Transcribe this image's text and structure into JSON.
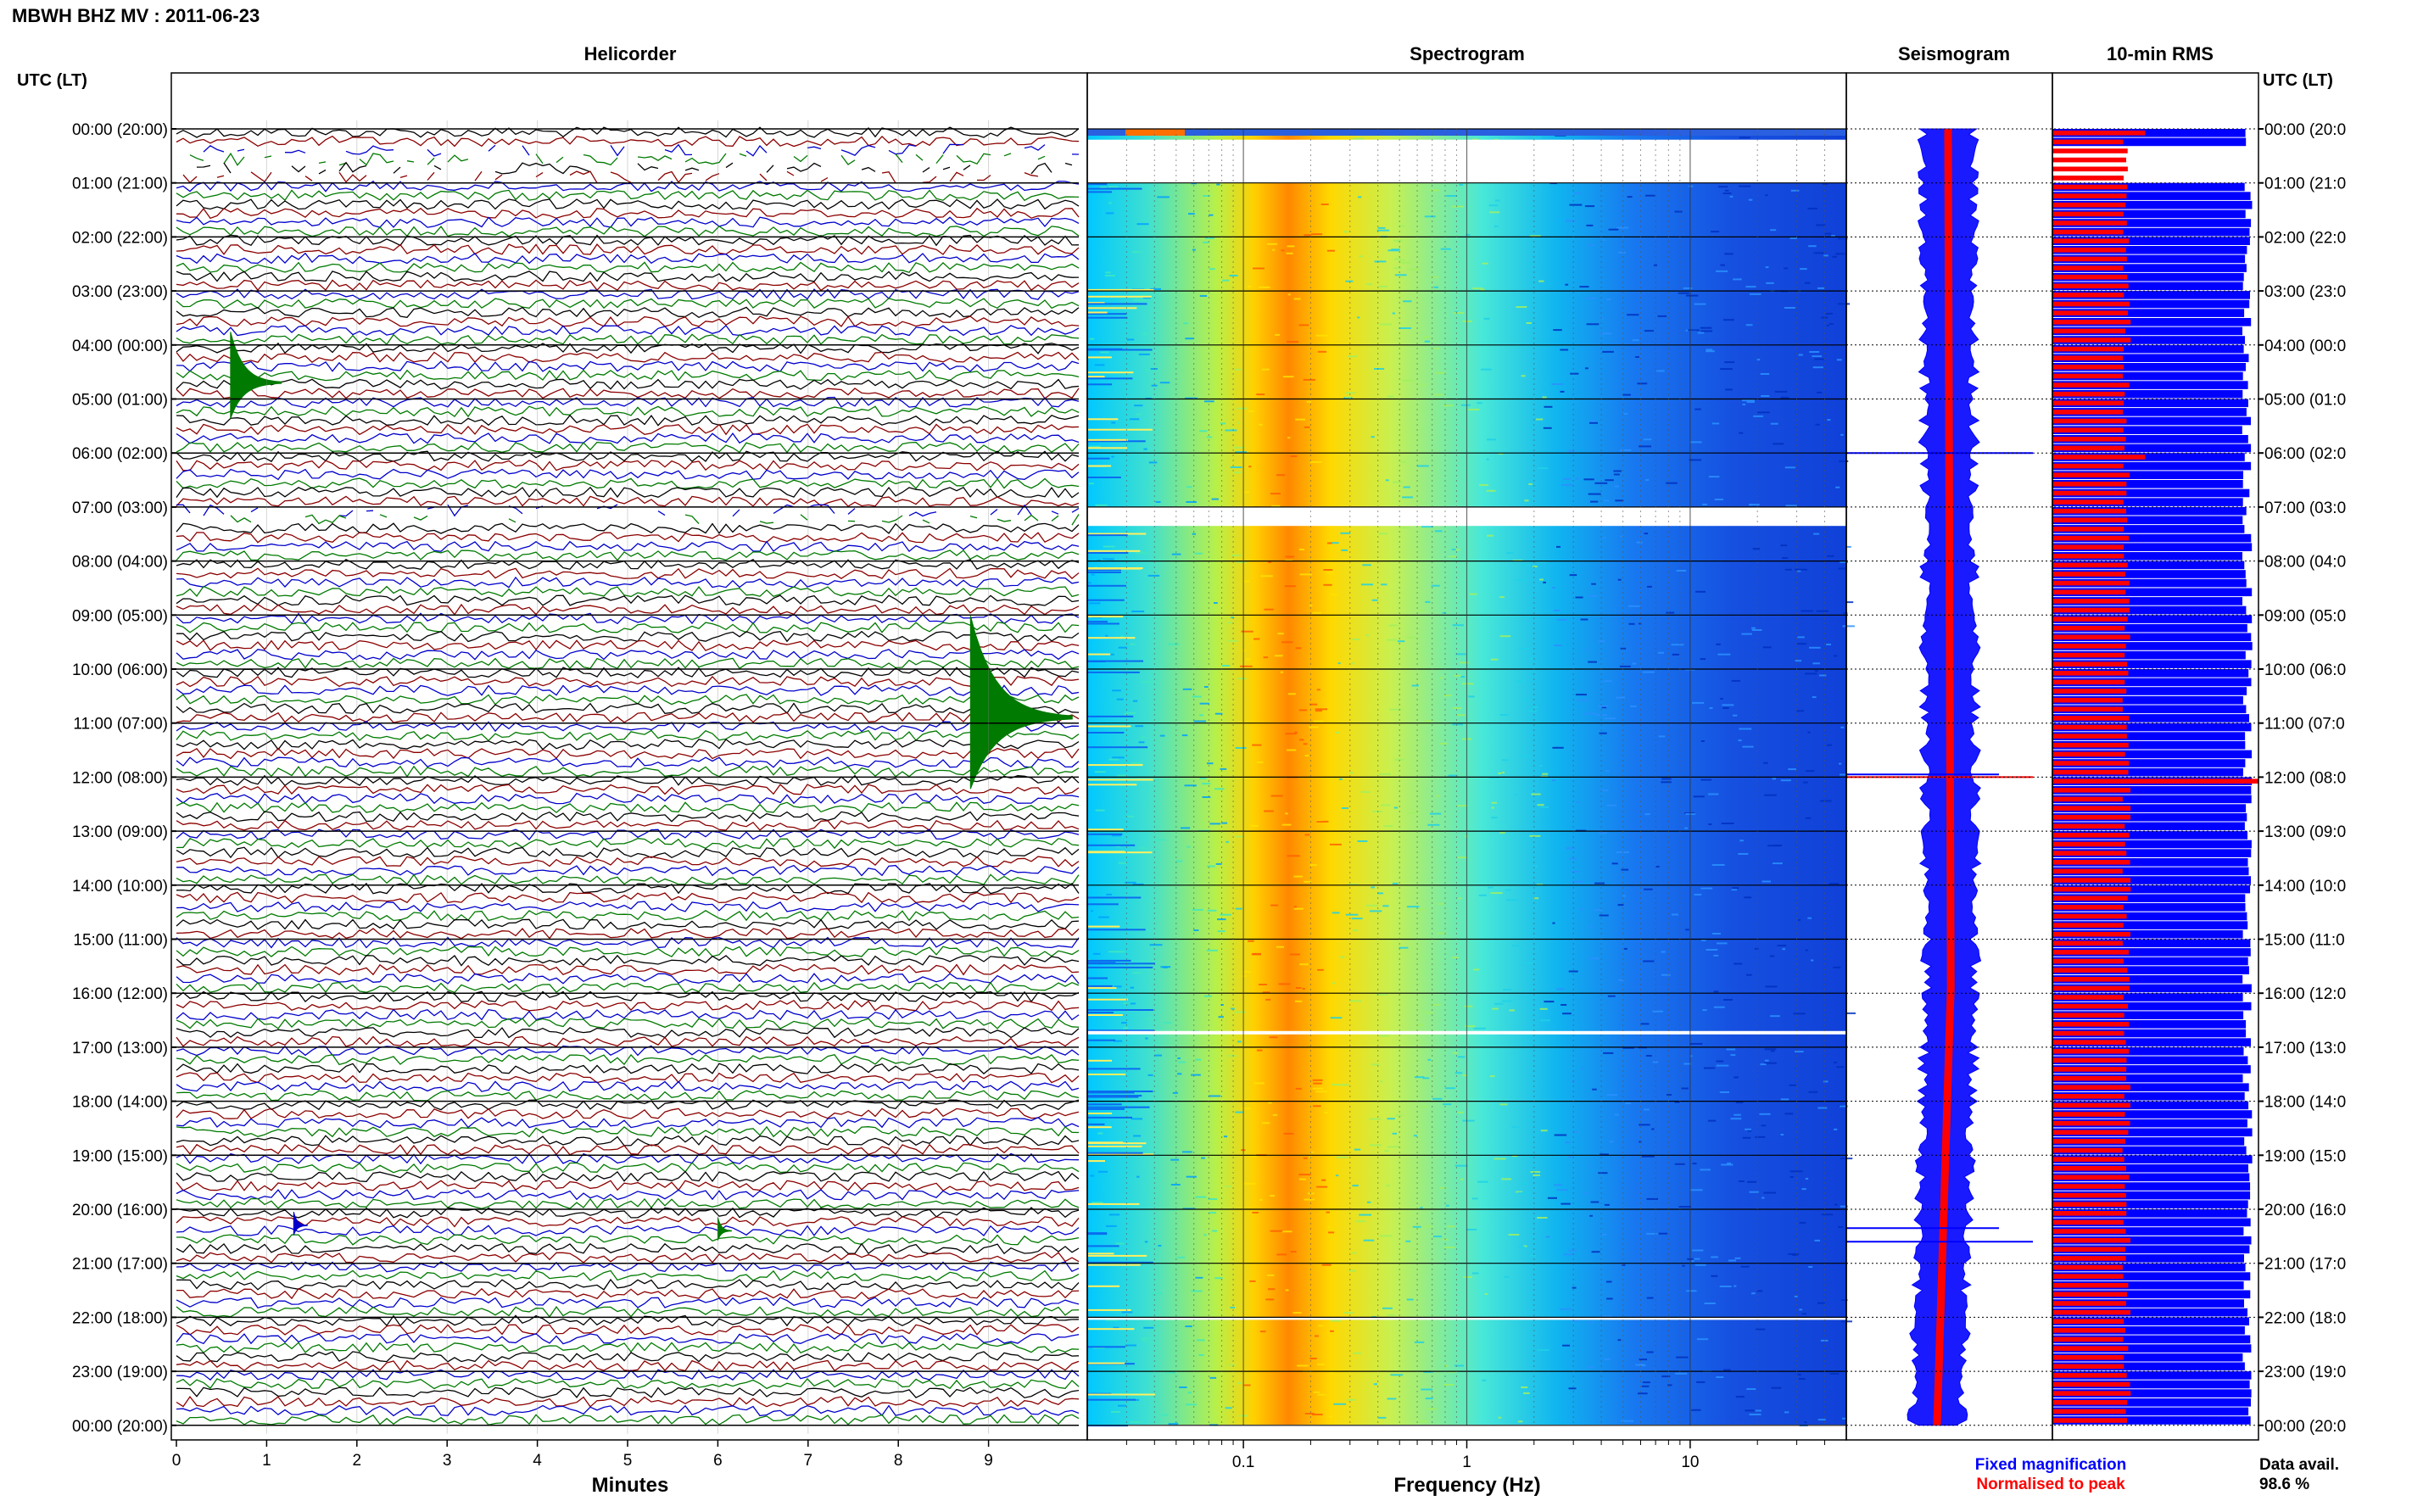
{
  "header": {
    "title": "MBWH BHZ MV : 2011-06-23",
    "utc_label_left": "UTC (LT)",
    "utc_label_right": "UTC (LT)"
  },
  "panels": {
    "helicorder": "Helicorder",
    "spectrogram": "Spectrogram",
    "seismogram": "Seismogram",
    "rms": "10-min RMS"
  },
  "hour_labels": [
    "00:00 (20:00)",
    "01:00 (21:00)",
    "02:00 (22:00)",
    "03:00 (23:00)",
    "04:00 (00:00)",
    "05:00 (01:00)",
    "06:00 (02:00)",
    "07:00 (03:00)",
    "08:00 (04:00)",
    "09:00 (05:00)",
    "10:00 (06:00)",
    "11:00 (07:00)",
    "12:00 (08:00)",
    "13:00 (09:00)",
    "14:00 (10:00)",
    "15:00 (11:00)",
    "16:00 (12:00)",
    "17:00 (13:00)",
    "18:00 (14:00)",
    "19:00 (15:00)",
    "20:00 (16:00)",
    "21:00 (17:00)",
    "22:00 (18:00)",
    "23:00 (19:00)",
    "00:00 (20:00)"
  ],
  "hour_labels_right": [
    "00:00 (20:0",
    "01:00 (21:0",
    "02:00 (22:0",
    "03:00 (23:0",
    "04:00 (00:0",
    "05:00 (01:0",
    "06:00 (02:0",
    "07:00 (03:0",
    "08:00 (04:0",
    "09:00 (05:0",
    "10:00 (06:0",
    "11:00 (07:0",
    "12:00 (08:0",
    "13:00 (09:0",
    "14:00 (10:0",
    "15:00 (11:0",
    "16:00 (12:0",
    "17:00 (13:0",
    "18:00 (14:0",
    "19:00 (15:0",
    "20:00 (16:0",
    "21:00 (17:0",
    "22:00 (18:0",
    "23:00 (19:0",
    "00:00 (20:0"
  ],
  "footer": {
    "minutes_label": "Minutes",
    "frequency_label": "Frequency (Hz)",
    "fixed_magnification": "Fixed magnification",
    "normalised_to_peak": "Normalised to peak",
    "data_avail_label": "Data avail.",
    "data_avail_value": "98.6 %"
  },
  "colors": {
    "fixed": "#0000ff",
    "normalised": "#ff0000",
    "trace_colors": [
      "#000000",
      "#8b0000",
      "#0000cc",
      "#007a00"
    ]
  },
  "chart_data": [
    {
      "type": "line",
      "name": "helicorder",
      "xlabel": "Minutes",
      "x_ticks": [
        "0",
        "1",
        "2",
        "3",
        "4",
        "5",
        "6",
        "7",
        "8",
        "9"
      ],
      "xlim": [
        0,
        10
      ],
      "rows_per_hour": 6,
      "data_gaps_hours": [
        [
          0.3,
          1.0
        ],
        [
          6.9,
          7.3
        ]
      ],
      "events": [
        {
          "hour": 4.7,
          "minute": 0.6,
          "color": "green",
          "amplitude": 1.5
        },
        {
          "hour": 10.9,
          "minute": 8.8,
          "color": "green",
          "amplitude": 3.0
        },
        {
          "hour": 20.3,
          "minute": 1.3,
          "color": "blue",
          "amplitude": 0.4
        },
        {
          "hour": 20.4,
          "minute": 6.0,
          "color": "green",
          "amplitude": 0.4
        }
      ]
    },
    {
      "type": "heatmap",
      "name": "spectrogram",
      "xlabel": "Frequency (Hz)",
      "x_scale": "log",
      "xlim": [
        0.02,
        50
      ],
      "x_ticks": [
        "0.1",
        "1",
        "10"
      ],
      "peak_band_hz": [
        0.2,
        0.4
      ],
      "data_gaps_hours": [
        [
          0.2,
          1.0
        ],
        [
          7.0,
          7.35
        ]
      ]
    },
    {
      "type": "line",
      "name": "seismogram",
      "series": [
        {
          "name": "Fixed magnification",
          "color": "#0000ff"
        },
        {
          "name": "Normalised to peak",
          "color": "#ff0000"
        }
      ],
      "spikes_hours": [
        6.0,
        11.95,
        12.0,
        20.35,
        20.6
      ]
    },
    {
      "type": "bar",
      "name": "10-min RMS",
      "series": [
        {
          "name": "Fixed magnification",
          "color": "#0000ff",
          "relative_level": 0.97
        },
        {
          "name": "Normalised to peak",
          "color": "#ff0000",
          "relative_level": 0.36
        }
      ],
      "peaks_hours": [
        0.0,
        6.0,
        12.0
      ]
    }
  ]
}
